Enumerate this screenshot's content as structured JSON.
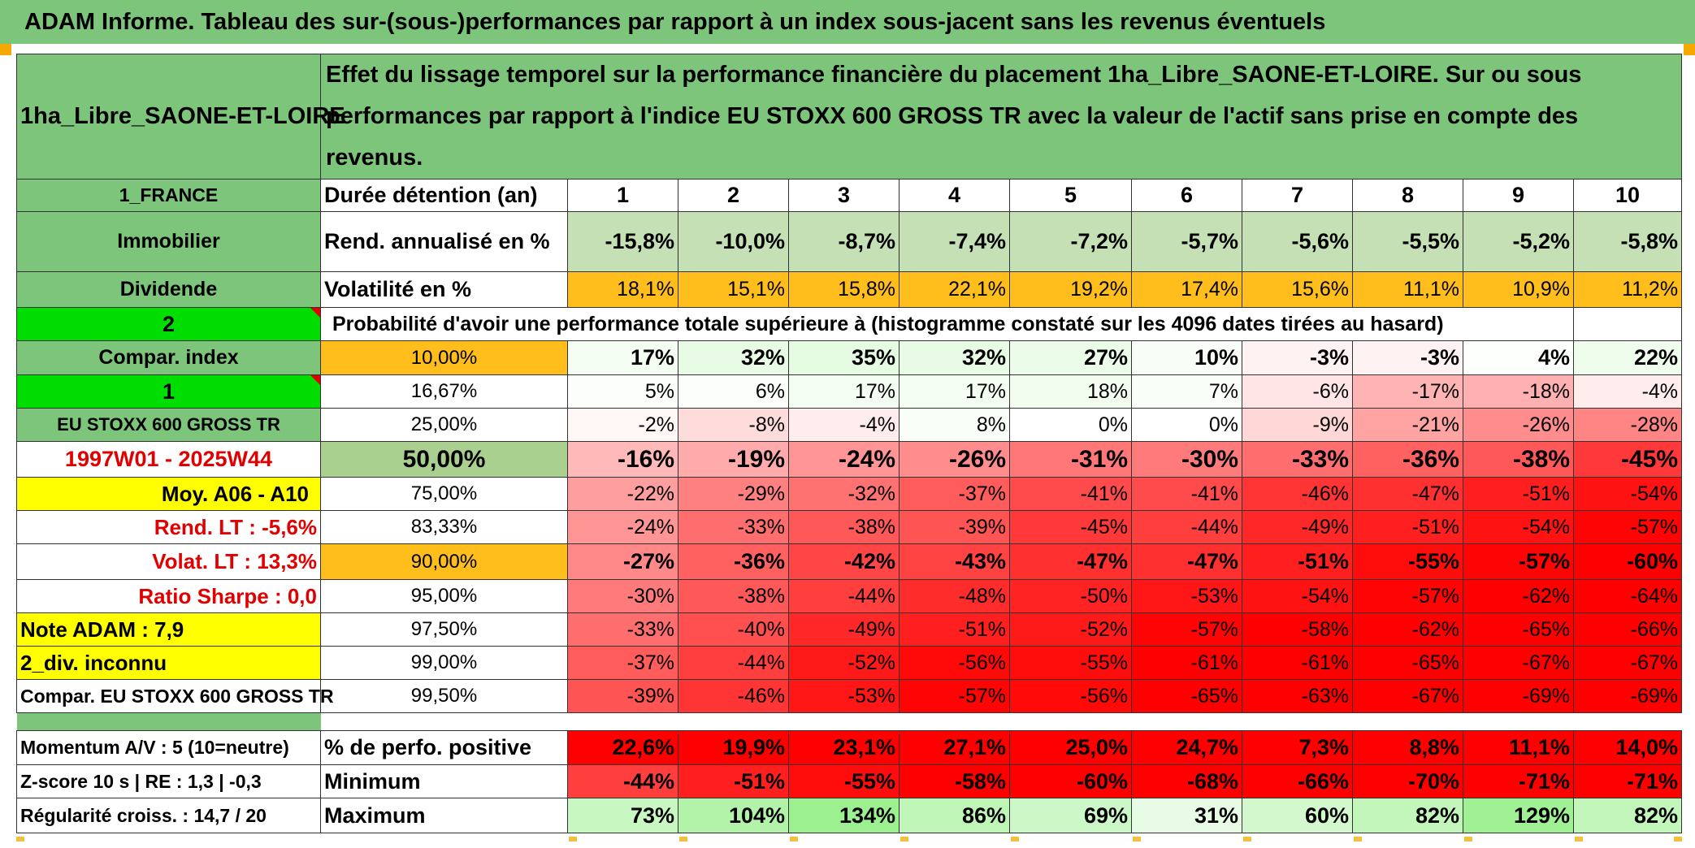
{
  "title": "ADAM Informe. Tableau des sur-(sous-)performances par rapport à un index sous-jacent sans les revenus éventuels",
  "header": {
    "asset": "1ha_Libre_SAONE-ET-LOIRE",
    "description": "Effet du lissage temporel sur la performance financière du placement 1ha_Libre_SAONE-ET-LOIRE. Sur ou sous performances par rapport à l'indice EU STOXX 600 GROSS TR avec la valeur de l'actif sans prise en compte des revenus."
  },
  "colors": {
    "green_label": "#7dc57a",
    "bright_green": "#00dd00",
    "yellow": "#ffff00",
    "orange": "#ffbe1c",
    "red_text": "#e00000"
  },
  "side_labels": {
    "country": "1_FRANCE",
    "category": "Immobilier",
    "income": "Dividende",
    "code2": "2",
    "compar": "Compar. index",
    "code1": "1",
    "index_name": "EU STOXX 600 GROSS TR",
    "period": "1997W01 - 2025W44",
    "moy": "Moy. A06 - A10",
    "rend_lt": "Rend. LT :    -5,6%",
    "volat_lt": "Volat. LT :    13,3%",
    "sharpe": "Ratio Sharpe :    0,0",
    "note": "Note ADAM : 7,9",
    "div": "2_div. inconnu",
    "compar_full": "Compar. EU STOXX 600 GROSS TR"
  },
  "row_labels": {
    "duration": "Durée détention (an)",
    "rend": "Rend. annualisé en %",
    "vol": "Volatilité en %",
    "prob": "Probabilité d'avoir une performance totale supérieure à (histogramme constaté sur les 4096 dates tirées au hasard)"
  },
  "years": [
    "1",
    "2",
    "3",
    "4",
    "5",
    "6",
    "7",
    "8",
    "9",
    "10"
  ],
  "rend": [
    "-15,8%",
    "-10,0%",
    "-8,7%",
    "-7,4%",
    "-7,2%",
    "-5,7%",
    "-5,6%",
    "-5,5%",
    "-5,2%",
    "-5,8%"
  ],
  "vol": [
    "18,1%",
    "15,1%",
    "15,8%",
    "22,1%",
    "19,2%",
    "17,4%",
    "15,6%",
    "11,1%",
    "10,9%",
    "11,2%"
  ],
  "percentiles": [
    {
      "p": "10,00%",
      "v": [
        "17%",
        "32%",
        "35%",
        "32%",
        "27%",
        "10%",
        "-3%",
        "-3%",
        "4%",
        "22%"
      ]
    },
    {
      "p": "16,67%",
      "v": [
        "5%",
        "6%",
        "17%",
        "17%",
        "18%",
        "7%",
        "-6%",
        "-17%",
        "-18%",
        "-4%"
      ]
    },
    {
      "p": "25,00%",
      "v": [
        "-2%",
        "-8%",
        "-4%",
        "8%",
        "0%",
        "0%",
        "-9%",
        "-21%",
        "-26%",
        "-28%"
      ]
    },
    {
      "p": "50,00%",
      "v": [
        "-16%",
        "-19%",
        "-24%",
        "-26%",
        "-31%",
        "-30%",
        "-33%",
        "-36%",
        "-38%",
        "-45%"
      ]
    },
    {
      "p": "75,00%",
      "v": [
        "-22%",
        "-29%",
        "-32%",
        "-37%",
        "-41%",
        "-41%",
        "-46%",
        "-47%",
        "-51%",
        "-54%"
      ]
    },
    {
      "p": "83,33%",
      "v": [
        "-24%",
        "-33%",
        "-38%",
        "-39%",
        "-45%",
        "-44%",
        "-49%",
        "-51%",
        "-54%",
        "-57%"
      ]
    },
    {
      "p": "90,00%",
      "v": [
        "-27%",
        "-36%",
        "-42%",
        "-43%",
        "-47%",
        "-47%",
        "-51%",
        "-55%",
        "-57%",
        "-60%"
      ]
    },
    {
      "p": "95,00%",
      "v": [
        "-30%",
        "-38%",
        "-44%",
        "-48%",
        "-50%",
        "-53%",
        "-54%",
        "-57%",
        "-62%",
        "-64%"
      ]
    },
    {
      "p": "97,50%",
      "v": [
        "-33%",
        "-40%",
        "-49%",
        "-51%",
        "-52%",
        "-57%",
        "-58%",
        "-62%",
        "-65%",
        "-66%"
      ]
    },
    {
      "p": "99,00%",
      "v": [
        "-37%",
        "-44%",
        "-52%",
        "-56%",
        "-55%",
        "-61%",
        "-61%",
        "-65%",
        "-67%",
        "-67%"
      ]
    },
    {
      "p": "99,50%",
      "v": [
        "-39%",
        "-46%",
        "-53%",
        "-57%",
        "-56%",
        "-65%",
        "-63%",
        "-67%",
        "-69%",
        "-69%"
      ]
    }
  ],
  "bottom": [
    {
      "side": "Momentum A/V : 5 (10=neutre)",
      "label": "% de perfo. positive",
      "v": [
        "22,6%",
        "19,9%",
        "23,1%",
        "27,1%",
        "25,0%",
        "24,7%",
        "7,3%",
        "8,8%",
        "11,1%",
        "14,0%"
      ]
    },
    {
      "side": "Z-score 10 s | RE : 1,3 | -0,3",
      "label": "Minimum",
      "v": [
        "-44%",
        "-51%",
        "-55%",
        "-58%",
        "-60%",
        "-68%",
        "-66%",
        "-70%",
        "-71%",
        "-71%"
      ]
    },
    {
      "side": "Régularité croiss. : 14,7 / 20",
      "label": "Maximum",
      "v": [
        "73%",
        "104%",
        "134%",
        "86%",
        "69%",
        "31%",
        "60%",
        "82%",
        "129%",
        "82%"
      ]
    }
  ]
}
